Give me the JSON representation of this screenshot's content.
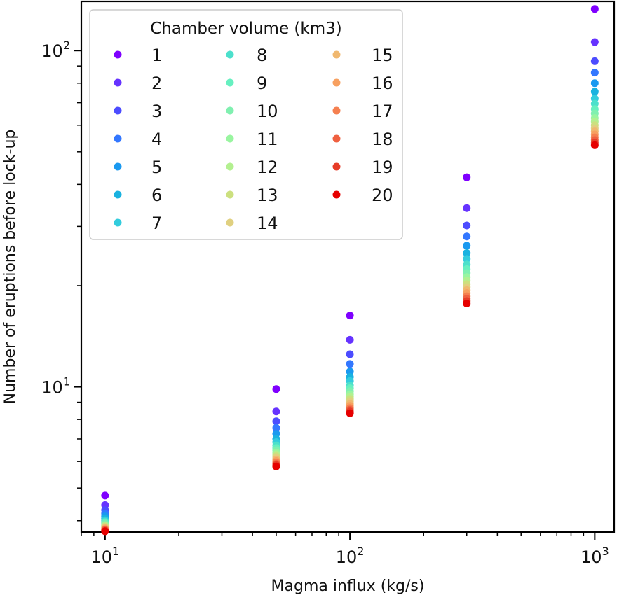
{
  "chart_data": {
    "type": "scatter",
    "xscale": "log",
    "yscale": "log",
    "xlim": [
      8,
      1200
    ],
    "ylim": [
      3.7,
      140
    ],
    "xlabel": "Magma influx (kg/s)",
    "ylabel": "Number of eruptions before lock-up",
    "xticks": [
      {
        "base": "10",
        "exp": "1",
        "value": 10
      },
      {
        "base": "10",
        "exp": "2",
        "value": 100
      },
      {
        "base": "10",
        "exp": "3",
        "value": 1000
      }
    ],
    "yticks": [
      {
        "base": "10",
        "exp": "1",
        "value": 10
      },
      {
        "base": "10",
        "exp": "2",
        "value": 100
      }
    ],
    "legend": {
      "title": "Chamber volume (km3)",
      "placement": "top-left",
      "columns": 3
    },
    "x": [
      10,
      50,
      100,
      300,
      1000
    ],
    "series": [
      {
        "name": "1",
        "color": "#7f00ff",
        "values": [
          4.75,
          9.85,
          16.3,
          42.0,
          133.0
        ]
      },
      {
        "name": "2",
        "color": "#6633ff",
        "values": [
          4.45,
          8.45,
          13.8,
          34.0,
          106.0
        ]
      },
      {
        "name": "3",
        "color": "#4c4cff",
        "values": [
          4.3,
          7.9,
          12.5,
          30.2,
          93.0
        ]
      },
      {
        "name": "4",
        "color": "#3377ff",
        "values": [
          4.2,
          7.55,
          11.7,
          28.0,
          86.0
        ]
      },
      {
        "name": "5",
        "color": "#1a99f0",
        "values": [
          4.12,
          7.25,
          11.1,
          26.3,
          80.0
        ]
      },
      {
        "name": "6",
        "color": "#19b2e0",
        "values": [
          4.06,
          7.0,
          10.7,
          25.0,
          75.5
        ]
      },
      {
        "name": "7",
        "color": "#33ccdd",
        "values": [
          4.01,
          6.85,
          10.4,
          24.0,
          72.0
        ]
      },
      {
        "name": "8",
        "color": "#4ce0cc",
        "values": [
          3.97,
          6.7,
          10.1,
          23.1,
          69.5
        ]
      },
      {
        "name": "9",
        "color": "#66f0c0",
        "values": [
          3.94,
          6.58,
          9.9,
          22.4,
          67.0
        ]
      },
      {
        "name": "10",
        "color": "#80f0b0",
        "values": [
          3.91,
          6.48,
          9.7,
          21.8,
          65.0
        ]
      },
      {
        "name": "11",
        "color": "#99f5a0",
        "values": [
          3.88,
          6.38,
          9.5,
          21.2,
          63.0
        ]
      },
      {
        "name": "12",
        "color": "#b3f090",
        "values": [
          3.86,
          6.3,
          9.35,
          20.7,
          61.5
        ]
      },
      {
        "name": "13",
        "color": "#cce07f",
        "values": [
          3.84,
          6.22,
          9.2,
          20.2,
          60.0
        ]
      },
      {
        "name": "14",
        "color": "#e0d080",
        "values": [
          3.82,
          6.15,
          9.05,
          19.8,
          58.7
        ]
      },
      {
        "name": "15",
        "color": "#f0b870",
        "values": [
          3.8,
          6.08,
          8.9,
          19.4,
          57.5
        ]
      },
      {
        "name": "16",
        "color": "#f7a060",
        "values": [
          3.78,
          6.02,
          8.78,
          19.0,
          56.3
        ]
      },
      {
        "name": "17",
        "color": "#f58050",
        "values": [
          3.76,
          5.96,
          8.65,
          18.6,
          55.2
        ]
      },
      {
        "name": "18",
        "color": "#ef6040",
        "values": [
          3.75,
          5.9,
          8.55,
          18.3,
          54.2
        ]
      },
      {
        "name": "19",
        "color": "#e63c28",
        "values": [
          3.73,
          5.85,
          8.45,
          18.0,
          53.2
        ]
      },
      {
        "name": "20",
        "color": "#e60000",
        "values": [
          3.72,
          5.8,
          8.35,
          17.7,
          52.3
        ]
      }
    ]
  }
}
